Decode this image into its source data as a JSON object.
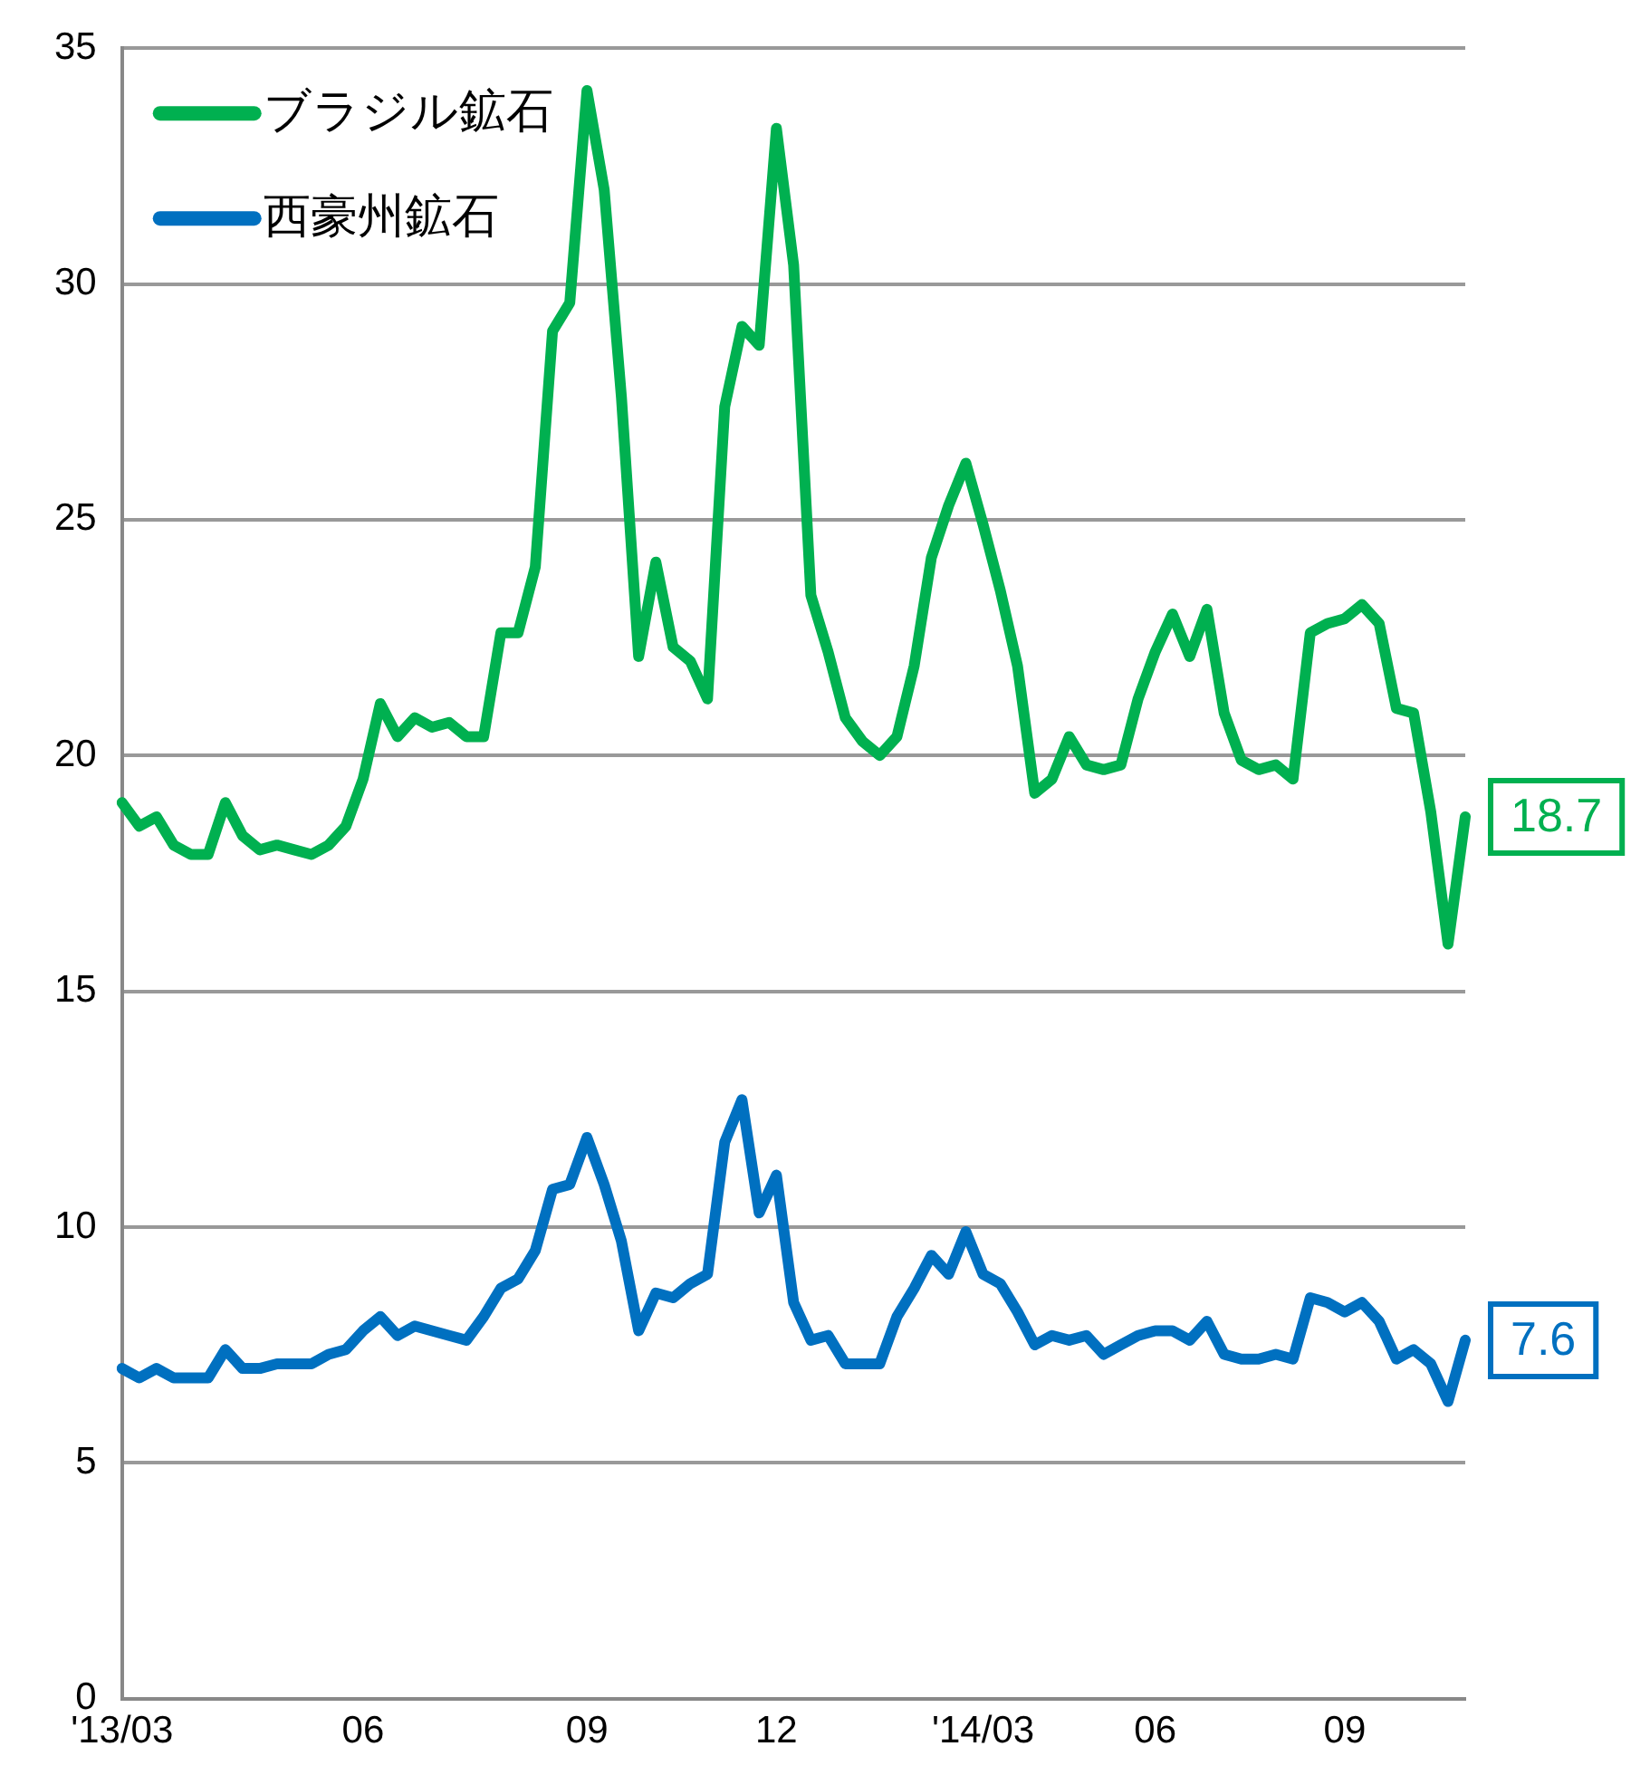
{
  "chart_data": {
    "type": "line",
    "categories": [
      "'13/03",
      null,
      null,
      null,
      null,
      null,
      null,
      null,
      null,
      null,
      null,
      null,
      null,
      null,
      "06",
      null,
      null,
      null,
      null,
      null,
      null,
      null,
      null,
      null,
      null,
      null,
      null,
      "09",
      null,
      null,
      null,
      null,
      null,
      null,
      null,
      null,
      null,
      null,
      "12",
      null,
      null,
      null,
      null,
      null,
      null,
      null,
      null,
      null,
      null,
      null,
      "'14/03",
      null,
      null,
      null,
      null,
      null,
      null,
      null,
      null,
      null,
      "06",
      null,
      null,
      null,
      null,
      null,
      null,
      null,
      null,
      null,
      null,
      "09",
      null,
      null,
      null,
      null,
      null,
      null,
      null
    ],
    "series": [
      {
        "name": "ブラジル鉱石",
        "color": "#00b050",
        "values": [
          19.0,
          18.5,
          18.7,
          18.1,
          17.9,
          17.9,
          19.0,
          18.3,
          18.0,
          18.1,
          18.0,
          17.9,
          18.1,
          18.5,
          19.5,
          21.1,
          20.4,
          20.8,
          20.6,
          20.7,
          20.4,
          20.4,
          22.6,
          22.6,
          24.0,
          29.0,
          29.6,
          34.1,
          32.0,
          27.6,
          22.1,
          24.1,
          22.3,
          22.0,
          21.2,
          27.4,
          29.1,
          28.7,
          33.3,
          30.4,
          23.4,
          22.2,
          20.8,
          20.3,
          20.0,
          20.4,
          21.9,
          24.2,
          25.3,
          26.2,
          24.9,
          23.5,
          21.9,
          19.2,
          19.5,
          20.4,
          19.8,
          19.7,
          19.8,
          21.2,
          22.2,
          23.0,
          22.1,
          23.1,
          20.9,
          19.9,
          19.7,
          19.8,
          19.5,
          22.6,
          22.8,
          22.9,
          23.2,
          22.8,
          21.0,
          20.9,
          18.8,
          16.0,
          18.7
        ]
      },
      {
        "name": "西豪州鉱石",
        "color": "#0070c0",
        "values": [
          7.0,
          6.8,
          7.0,
          6.8,
          6.8,
          6.8,
          7.4,
          7.0,
          7.0,
          7.1,
          7.1,
          7.1,
          7.3,
          7.4,
          7.8,
          8.1,
          7.7,
          7.9,
          7.8,
          7.7,
          7.6,
          8.1,
          8.7,
          8.9,
          9.5,
          10.8,
          10.9,
          11.9,
          10.9,
          9.7,
          7.8,
          8.6,
          8.5,
          8.8,
          9.0,
          11.8,
          12.7,
          10.3,
          11.1,
          8.4,
          7.6,
          7.7,
          7.1,
          7.1,
          7.1,
          8.1,
          8.7,
          9.4,
          9.0,
          9.9,
          9.0,
          8.8,
          8.2,
          7.5,
          7.7,
          7.6,
          7.7,
          7.3,
          7.5,
          7.7,
          7.8,
          7.8,
          7.6,
          8.0,
          7.3,
          7.2,
          7.2,
          7.3,
          7.2,
          8.5,
          8.4,
          8.2,
          8.4,
          8.0,
          7.2,
          7.4,
          7.1,
          6.3,
          7.6
        ]
      }
    ],
    "ylim": [
      0,
      35
    ],
    "yticks": [
      0,
      5,
      10,
      15,
      20,
      25,
      30,
      35
    ],
    "grid": "y",
    "legend": "top left",
    "marker": "none",
    "line_style": "solid",
    "annotations": [
      "18.7",
      "7.6"
    ]
  }
}
